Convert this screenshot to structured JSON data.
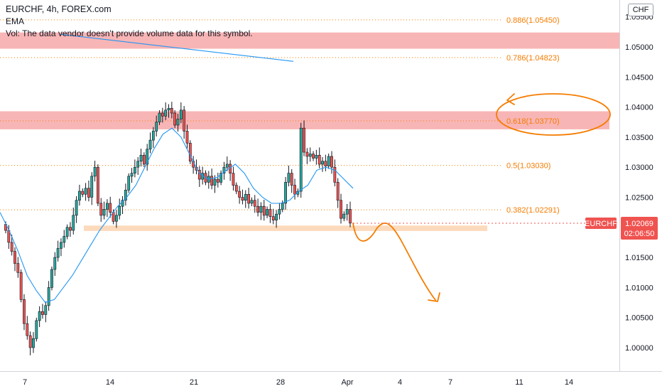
{
  "header": {
    "symbol_line": "EURCHF, 4h, FOREX.com",
    "ema_label": "EMA",
    "vol_notice": "Vol: The data vendor doesn't provide volume data for this symbol."
  },
  "currency_button": "CHF",
  "price_badge": {
    "symbol": "EURCHF",
    "price": "1.02069",
    "countdown": "02:06:50"
  },
  "colors": {
    "up": "#26a69a",
    "down": "#ef5350",
    "body": "#131722",
    "ema": "#2196f3",
    "fib": "#f57c00",
    "zone_red": "#f7a8a8",
    "zone_orange": "#fbd4b0",
    "badge": "#ef5350"
  },
  "chart_data": {
    "type": "candlestick",
    "title": "EURCHF, 4h, FOREX.com",
    "y_axis": {
      "range": [
        0.9968,
        1.0576
      ],
      "ticks": [
        "1.00000",
        "1.00500",
        "1.01000",
        "1.01500",
        "1.02000",
        "1.02500",
        "1.03000",
        "1.03500",
        "1.04000",
        "1.04500",
        "1.05000",
        "1.05500"
      ]
    },
    "x_axis": {
      "ticks": [
        "7",
        "14",
        "21",
        "28",
        "Apr",
        "4",
        "7",
        "11",
        "14"
      ]
    },
    "fib_levels": [
      {
        "label": "0.886(1.05450)",
        "value": 1.0545
      },
      {
        "label": "0.786(1.04823)",
        "value": 1.04823
      },
      {
        "label": "0.618(1.03770)",
        "value": 1.0377
      },
      {
        "label": "0.5(1.03030)",
        "value": 1.0303
      },
      {
        "label": "0.382(1.02291)",
        "value": 1.02291
      }
    ],
    "zones": [
      {
        "kind": "resistance",
        "from": 1.0497,
        "to": 1.0524
      },
      {
        "kind": "resistance",
        "from": 1.0363,
        "to": 1.0393
      },
      {
        "kind": "support",
        "from": 1.0194,
        "to": 1.0203
      }
    ],
    "closes": [
      1.0195,
      1.0175,
      1.016,
      1.014,
      1.0125,
      1.008,
      1.004,
      1.002,
      1.0,
      1.0015,
      1.0045,
      1.006,
      1.0055,
      1.007,
      1.01,
      1.013,
      1.015,
      1.0165,
      1.0175,
      1.0185,
      1.02,
      1.0195,
      1.022,
      1.0245,
      1.026,
      1.0255,
      1.0265,
      1.025,
      1.0285,
      1.03,
      1.024,
      1.022,
      1.023,
      1.024,
      1.0225,
      1.021,
      1.022,
      1.0235,
      1.0245,
      1.0262,
      1.0285,
      1.029,
      1.03,
      1.031,
      1.032,
      1.0305,
      1.033,
      1.0345,
      1.036,
      1.0375,
      1.039,
      1.0385,
      1.0395,
      1.0398,
      1.039,
      1.037,
      1.038,
      1.0395,
      1.036,
      1.034,
      1.031,
      1.03,
      1.0295,
      1.028,
      1.029,
      1.0275,
      1.0285,
      1.027,
      1.028,
      1.0275,
      1.029,
      1.03,
      1.0305,
      1.029,
      1.027,
      1.026,
      1.025,
      1.0245,
      1.0255,
      1.024,
      1.0245,
      1.0235,
      1.0225,
      1.0235,
      1.022,
      1.023,
      1.0218,
      1.0212,
      1.0222,
      1.023,
      1.024,
      1.0275,
      1.029,
      1.027,
      1.0255,
      1.026,
      1.0365,
      1.0325,
      1.0318,
      1.0322,
      1.0315,
      1.032,
      1.0305,
      1.031,
      1.0302,
      1.0318,
      1.03,
      1.0275,
      1.0245,
      1.0215,
      1.0222,
      1.023,
      1.0207
    ],
    "ema_approx": [
      1.0225,
      1.0195,
      1.016,
      1.012,
      1.0095,
      1.0075,
      1.008,
      1.01,
      1.012,
      1.0145,
      1.017,
      1.0195,
      1.0215,
      1.0235,
      1.025,
      1.027,
      1.03,
      1.033,
      1.0355,
      1.0365,
      1.035,
      1.032,
      1.029,
      1.028,
      1.0283,
      1.0295,
      1.0305,
      1.029,
      1.0265,
      1.025,
      1.024,
      1.024,
      1.0245,
      1.026,
      1.027,
      1.0295,
      1.03,
      1.0295,
      1.028,
      1.0265
    ],
    "ema_upper_segment": {
      "from": 1.0521,
      "to": 1.0476
    },
    "projection": "drawn down-trend forecast from about 1.0207 toward about 1.0080",
    "last_price": 1.02069
  }
}
